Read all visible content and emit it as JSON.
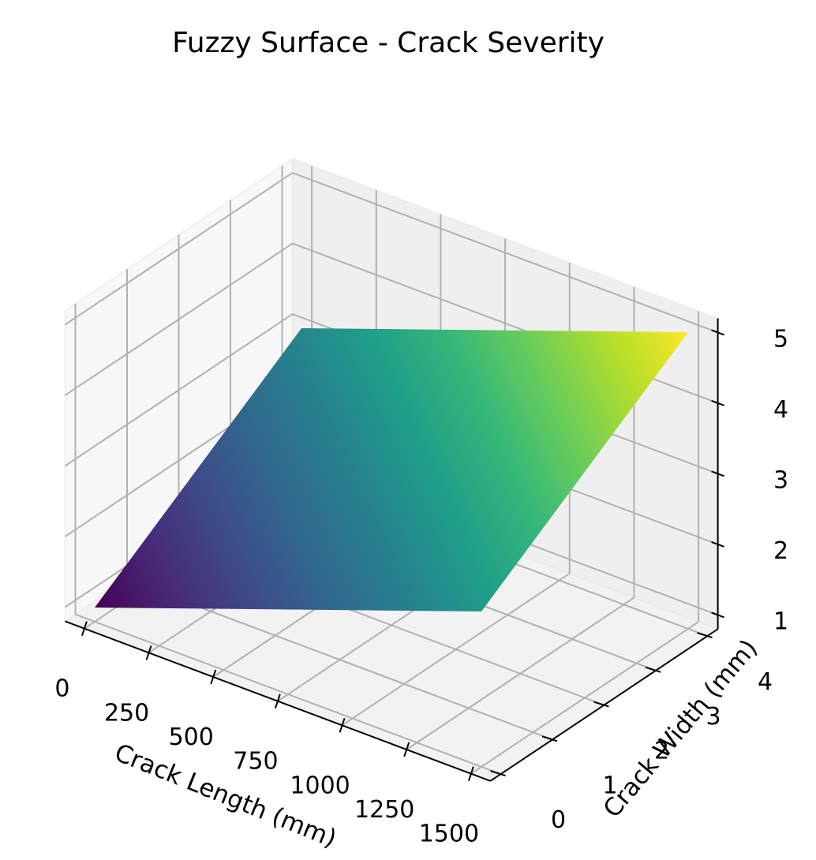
{
  "chart_data": {
    "type": "surface3d",
    "title": "Fuzzy Surface - Crack Severity",
    "xlabel": "Crack Length (mm)",
    "ylabel": "Crack Width (mm)",
    "zlabel": "",
    "x_ticks": [
      "0",
      "250",
      "500",
      "750",
      "1000",
      "1250",
      "1500"
    ],
    "y_ticks": [
      "0",
      "1",
      "2",
      "3",
      "4"
    ],
    "z_ticks": [
      "1",
      "2",
      "3",
      "4",
      "5"
    ],
    "xlim": [
      0,
      1500
    ],
    "ylim": [
      0,
      4
    ],
    "zlim": [
      1,
      5
    ],
    "surface": {
      "x": [
        0,
        1500
      ],
      "y": [
        0,
        4
      ],
      "z": [
        [
          1,
          3
        ],
        [
          3,
          5
        ]
      ],
      "colormap": "viridis"
    },
    "grid": true,
    "colors": {
      "pane_floor": "#f2f2f2",
      "pane_left": "#f7f7f7",
      "pane_back": "#efefef",
      "gridline": "#b0b0b0"
    }
  }
}
